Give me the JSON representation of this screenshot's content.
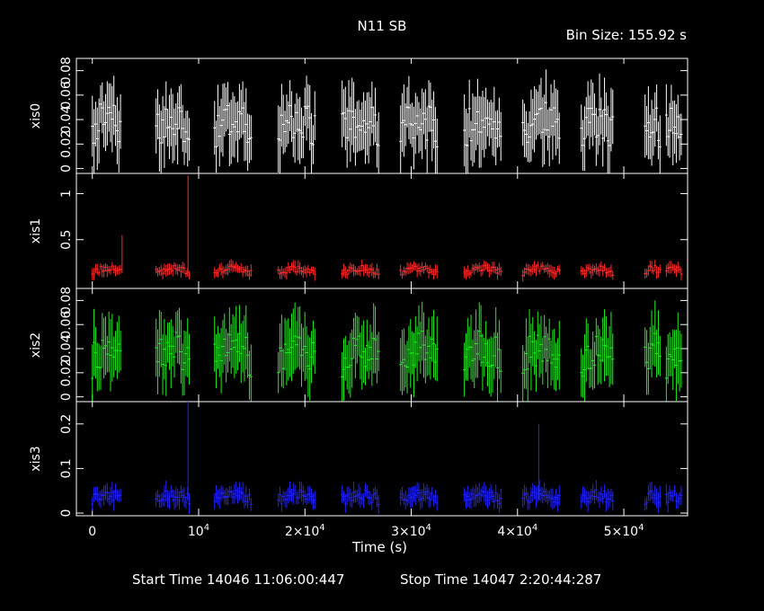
{
  "title": "N11 SB",
  "bin_size": "Bin Size: 155.92 s",
  "xlabel": "Time (s)",
  "start_time": "Start Time 14046 11:06:00:447",
  "stop_time": "Stop Time 14047  2:20:44:287",
  "chart_data": {
    "type": "line",
    "x_range": [
      -1500,
      56000
    ],
    "x_ticks": [
      0,
      10000,
      20000,
      30000,
      40000,
      50000
    ],
    "x_tick_labels": [
      "0",
      "10^4",
      "2×10^4",
      "3×10^4",
      "4×10^4",
      "5×10^4"
    ],
    "segments": [
      [
        0,
        2800
      ],
      [
        6000,
        9200
      ],
      [
        11500,
        15000
      ],
      [
        17500,
        21000
      ],
      [
        23500,
        27000
      ],
      [
        29000,
        32500
      ],
      [
        35000,
        38500
      ],
      [
        40500,
        44000
      ],
      [
        46000,
        49000
      ],
      [
        52000,
        53500
      ],
      [
        54000,
        55500
      ]
    ],
    "spikes": [
      {
        "panel": 1,
        "x": 2800,
        "value": 0.55
      },
      {
        "panel": 1,
        "x": 9000,
        "value": 1.2
      },
      {
        "panel": 3,
        "x": 9000,
        "value": 0.25
      },
      {
        "panel": 3,
        "x": 42000,
        "value": 0.2
      }
    ],
    "panels": [
      {
        "name": "xis0",
        "color": "#ffffff",
        "ylim": [
          -0.004,
          0.09
        ],
        "yticks": [
          0,
          0.02,
          0.04,
          0.06,
          0.08
        ],
        "ytick_labels": [
          "0",
          "0.02",
          "0.04",
          "0.06",
          "0.08"
        ],
        "mean": 0.03,
        "noise": 0.025
      },
      {
        "name": "xis1",
        "color": "#ff2a2a",
        "ylim": [
          -0.03,
          1.22
        ],
        "yticks": [
          0.5,
          1
        ],
        "ytick_labels": [
          "0.5",
          "1"
        ],
        "mean": 0.14,
        "noise": 0.06
      },
      {
        "name": "xis2",
        "color": "#22ee22",
        "ylim": [
          -0.004,
          0.09
        ],
        "yticks": [
          0,
          0.02,
          0.04,
          0.06,
          0.08
        ],
        "ytick_labels": [
          "0",
          "0.02",
          "0.04",
          "0.06",
          "0.08"
        ],
        "mean": 0.03,
        "noise": 0.025
      },
      {
        "name": "xis3",
        "color": "#2222ff",
        "ylim": [
          -0.006,
          0.25
        ],
        "yticks": [
          0,
          0.1,
          0.2
        ],
        "ytick_labels": [
          "0",
          "0.1",
          "0.2"
        ],
        "mean": 0.03,
        "noise": 0.02
      }
    ]
  }
}
